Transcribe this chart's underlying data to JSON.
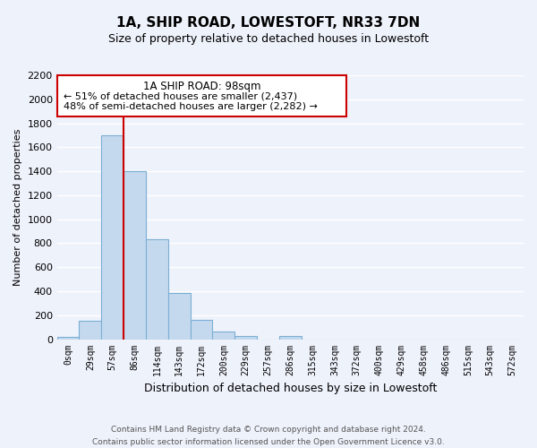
{
  "title": "1A, SHIP ROAD, LOWESTOFT, NR33 7DN",
  "subtitle": "Size of property relative to detached houses in Lowestoft",
  "xlabel": "Distribution of detached houses by size in Lowestoft",
  "ylabel": "Number of detached properties",
  "bar_labels": [
    "0sqm",
    "29sqm",
    "57sqm",
    "86sqm",
    "114sqm",
    "143sqm",
    "172sqm",
    "200sqm",
    "229sqm",
    "257sqm",
    "286sqm",
    "315sqm",
    "343sqm",
    "372sqm",
    "400sqm",
    "429sqm",
    "458sqm",
    "486sqm",
    "515sqm",
    "543sqm",
    "572sqm"
  ],
  "bar_values": [
    20,
    155,
    1700,
    1400,
    830,
    385,
    160,
    65,
    30,
    0,
    25,
    0,
    0,
    0,
    0,
    0,
    0,
    0,
    0,
    0,
    0
  ],
  "bar_color": "#c5d9ee",
  "bar_edge_color": "#7bafd4",
  "vline_color": "#cc0000",
  "ylim": [
    0,
    2200
  ],
  "yticks": [
    0,
    200,
    400,
    600,
    800,
    1000,
    1200,
    1400,
    1600,
    1800,
    2000,
    2200
  ],
  "annotation_title": "1A SHIP ROAD: 98sqm",
  "annotation_line1": "← 51% of detached houses are smaller (2,437)",
  "annotation_line2": "48% of semi-detached houses are larger (2,282) →",
  "annotation_box_color": "#ffffff",
  "annotation_border_color": "#cc0000",
  "footer_line1": "Contains HM Land Registry data © Crown copyright and database right 2024.",
  "footer_line2": "Contains public sector information licensed under the Open Government Licence v3.0.",
  "background_color": "#eef2fb",
  "grid_color": "#ffffff"
}
